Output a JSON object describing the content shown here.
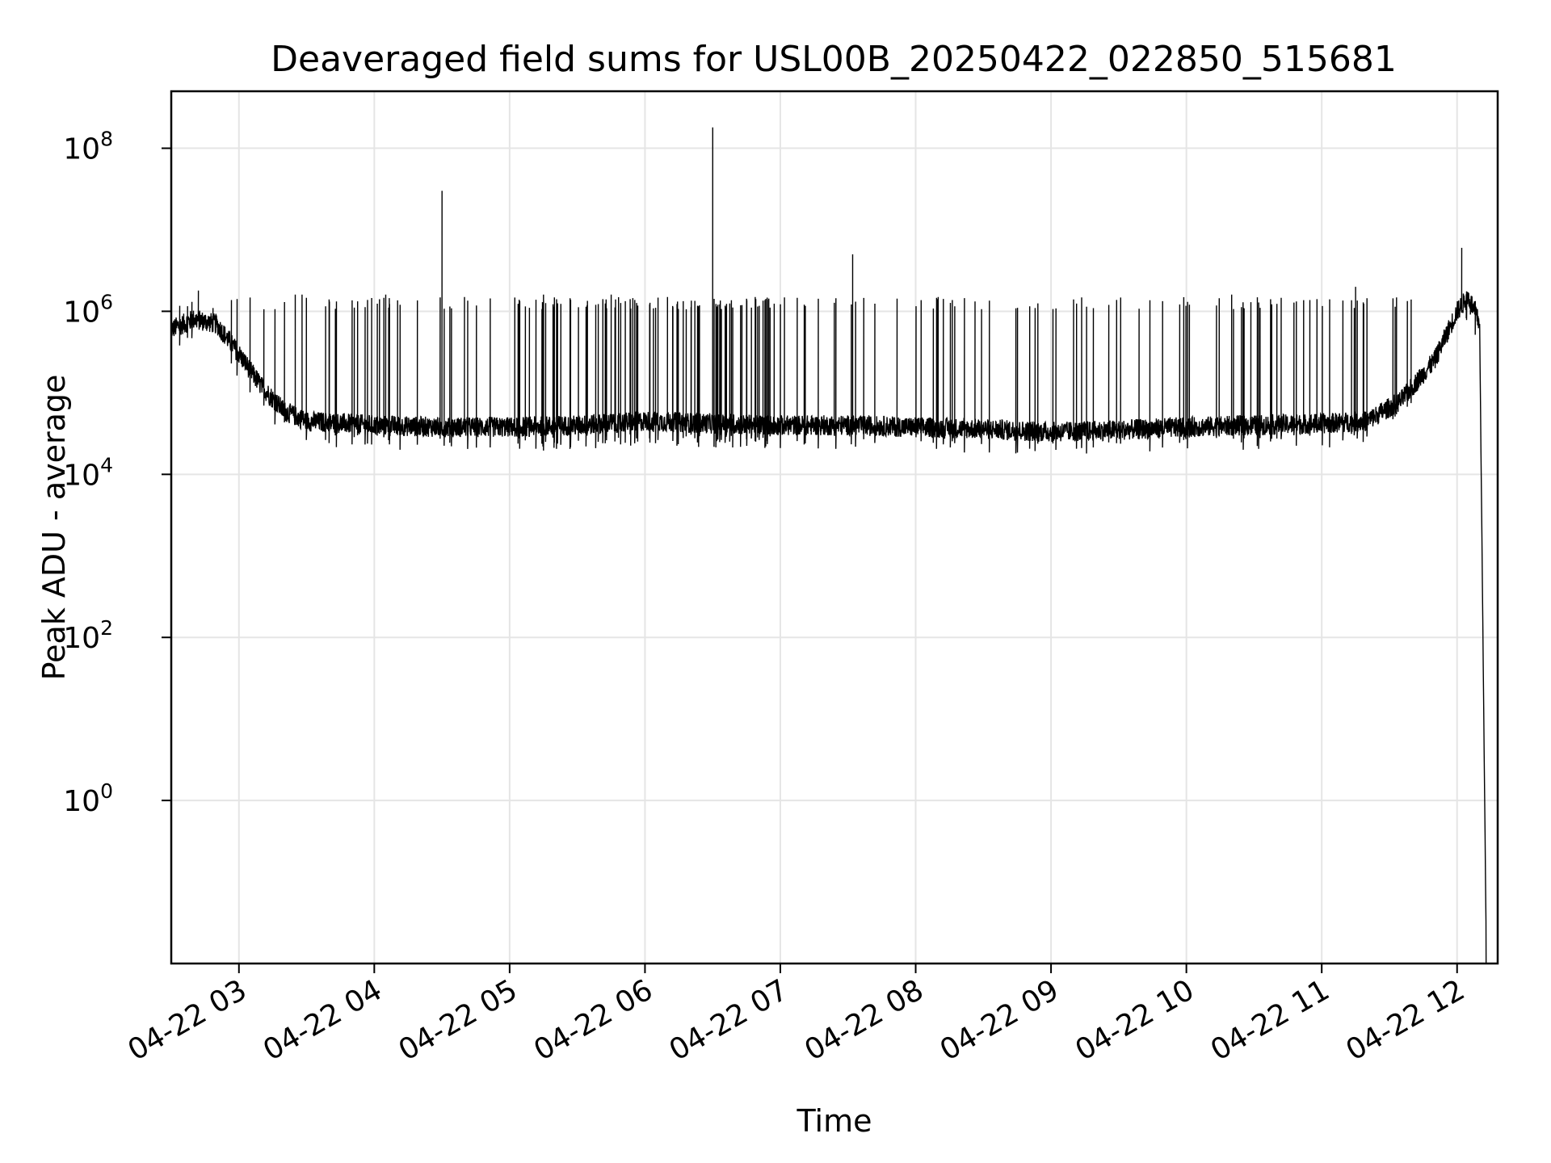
{
  "chart_data": {
    "type": "line",
    "title": "Deaveraged field sums for USL00B_20250422_022850_515681",
    "xlabel": "Time",
    "ylabel": "Peak ADU - average",
    "xscale": "time",
    "yscale": "log",
    "xlim": [
      "2025-04-22T02:30",
      "2025-04-22T12:18"
    ],
    "ylim": [
      0.01,
      500000000
    ],
    "x_ticks": [
      "04-22 03",
      "04-22 04",
      "04-22 05",
      "04-22 06",
      "04-22 07",
      "04-22 08",
      "04-22 09",
      "04-22 10",
      "04-22 11",
      "04-22 12"
    ],
    "x_tick_times": [
      "2025-04-22T03:00",
      "2025-04-22T04:00",
      "2025-04-22T05:00",
      "2025-04-22T06:00",
      "2025-04-22T07:00",
      "2025-04-22T08:00",
      "2025-04-22T09:00",
      "2025-04-22T10:00",
      "2025-04-22T11:00",
      "2025-04-22T12:00"
    ],
    "y_ticks": [
      {
        "base": "10",
        "exp": "0",
        "value": 1
      },
      {
        "base": "10",
        "exp": "2",
        "value": 100
      },
      {
        "base": "10",
        "exp": "4",
        "value": 10000
      },
      {
        "base": "10",
        "exp": "6",
        "value": 1000000
      },
      {
        "base": "10",
        "exp": "8",
        "value": 100000000
      }
    ],
    "grid": true,
    "line_color": "#000000",
    "series": [
      {
        "x": [
          "2025-04-22T02:30",
          "2025-04-22T02:40",
          "2025-04-22T02:50",
          "2025-04-22T03:00",
          "2025-04-22T03:10",
          "2025-04-22T03:20",
          "2025-04-22T03:30",
          "2025-04-22T04:00",
          "2025-04-22T04:30",
          "2025-04-22T05:00",
          "2025-04-22T05:30",
          "2025-04-22T06:00",
          "2025-04-22T06:30",
          "2025-04-22T07:00",
          "2025-04-22T07:30",
          "2025-04-22T08:00",
          "2025-04-22T08:30",
          "2025-04-22T09:00",
          "2025-04-22T09:30",
          "2025-04-22T10:00",
          "2025-04-22T10:30",
          "2025-04-22T11:00",
          "2025-04-22T11:20",
          "2025-04-22T11:35",
          "2025-04-22T11:50",
          "2025-04-22T12:00",
          "2025-04-22T12:05",
          "2025-04-22T12:10",
          "2025-04-22T12:13"
        ],
        "y": [
          600000,
          800000,
          700000,
          300000,
          120000,
          60000,
          45000,
          40000,
          38000,
          38000,
          40000,
          45000,
          42000,
          40000,
          40000,
          38000,
          36000,
          33000,
          35000,
          38000,
          40000,
          42000,
          45000,
          80000,
          250000,
          1000000,
          1500000,
          700000,
          0.01
        ],
        "spikes": [
          {
            "x": "2025-04-22T02:42",
            "y": 1800000
          },
          {
            "x": "2025-04-22T03:25",
            "y": 1600000
          },
          {
            "x": "2025-04-22T03:28",
            "y": 1600000
          },
          {
            "x": "2025-04-22T03:40",
            "y": 1400000
          },
          {
            "x": "2025-04-22T04:05",
            "y": 1600000
          },
          {
            "x": "2025-04-22T04:30",
            "y": 30000000
          },
          {
            "x": "2025-04-22T04:40",
            "y": 1500000
          },
          {
            "x": "2025-04-22T05:15",
            "y": 1600000
          },
          {
            "x": "2025-04-22T05:45",
            "y": 1600000
          },
          {
            "x": "2025-04-22T06:10",
            "y": 1500000
          },
          {
            "x": "2025-04-22T06:30",
            "y": 180000000
          },
          {
            "x": "2025-04-22T07:32",
            "y": 5000000
          },
          {
            "x": "2025-04-22T08:10",
            "y": 1500000
          },
          {
            "x": "2025-04-22T09:10",
            "y": 1400000
          },
          {
            "x": "2025-04-22T10:20",
            "y": 1600000
          },
          {
            "x": "2025-04-22T11:15",
            "y": 2000000
          },
          {
            "x": "2025-04-22T12:02",
            "y": 6000000
          }
        ]
      }
    ]
  }
}
